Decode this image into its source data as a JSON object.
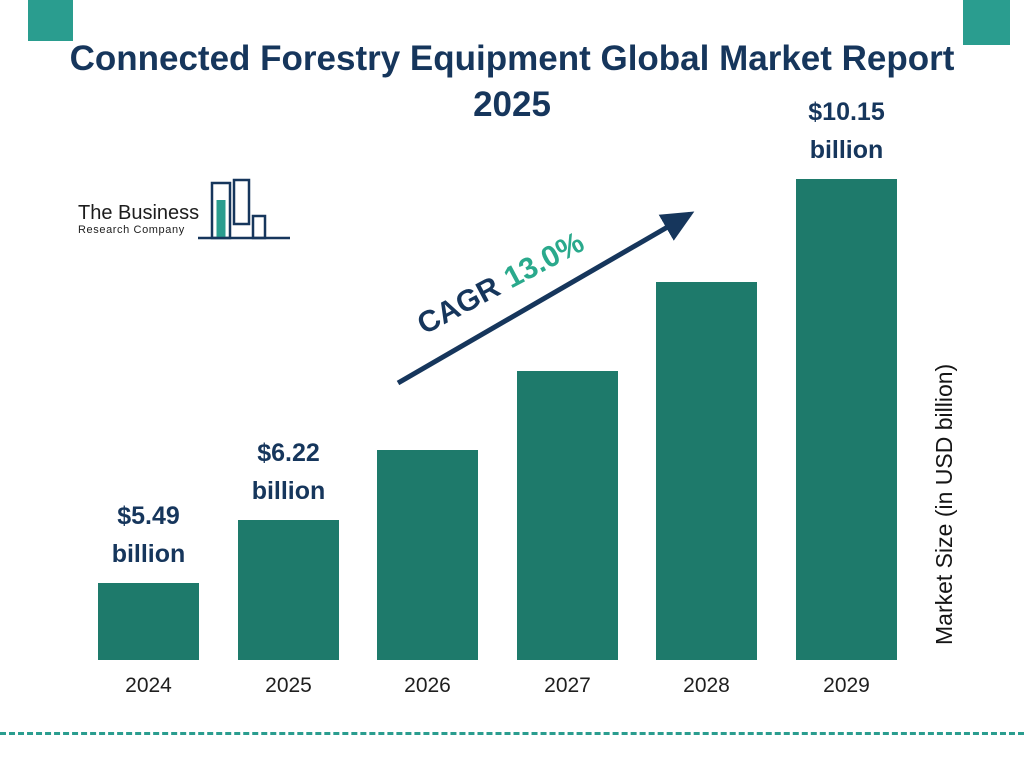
{
  "page": {
    "title": "Connected Forestry Equipment Global Market Report 2025"
  },
  "logo": {
    "line1": "The Business",
    "line2": "Research Company"
  },
  "colors": {
    "navy": "#16365c",
    "teal_bar": "#1e7a6b",
    "green_accent": "#2aa98c",
    "teal_decor": "#2a9d8f"
  },
  "chart_data": {
    "type": "bar",
    "title": "Connected Forestry Equipment Global Market Report 2025",
    "categories": [
      "2024",
      "2025",
      "2026",
      "2027",
      "2028",
      "2029"
    ],
    "values": [
      5.49,
      6.22,
      7.03,
      7.94,
      8.97,
      10.15
    ],
    "labeled_values": {
      "2024": "$5.49 billion",
      "2025": "$6.22 billion",
      "2029": "$10.15 billion"
    },
    "cagr_label": "CAGR",
    "cagr_value": "13.0%",
    "xlabel": "",
    "ylabel": "Market Size (in USD billion)",
    "ylim": [
      4.6,
      10.2
    ],
    "grid": false,
    "legend": "none",
    "bar_color": "#1e7a6b"
  }
}
